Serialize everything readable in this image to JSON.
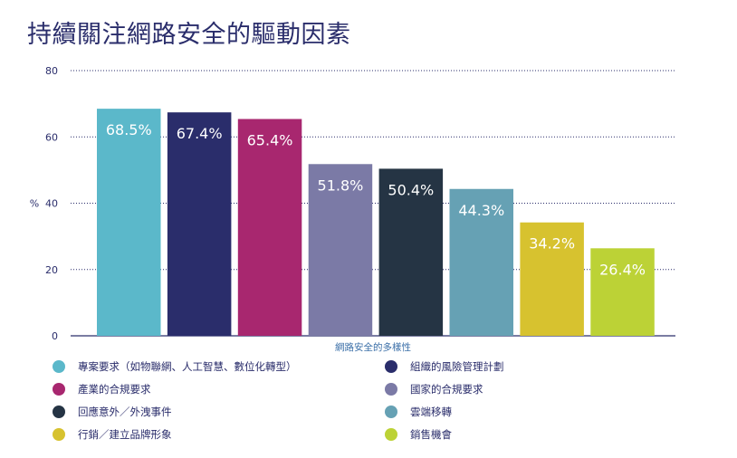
{
  "title": "持續關注網路安全的驅動因素",
  "chart_data": {
    "type": "bar",
    "categories": [
      "專案要求（如物聯網、人工智慧、數位化轉型）",
      "組織的風險管理計劃",
      "產業的合規要求",
      "國家的合規要求",
      "回應意外／外洩事件",
      "雲端移轉",
      "行銷／建立品牌形象",
      "銷售機會"
    ],
    "values": [
      68.5,
      67.4,
      65.4,
      51.8,
      50.4,
      44.3,
      34.2,
      26.4
    ],
    "value_labels": [
      "68.5%",
      "67.4%",
      "65.4%",
      "51.8%",
      "50.4%",
      "44.3%",
      "34.2%",
      "26.4%"
    ],
    "colors": [
      "#5bb8ca",
      "#2a2d6b",
      "#a8276f",
      "#7b7aa6",
      "#253444",
      "#66a1b4",
      "#d7c22f",
      "#bcd236"
    ],
    "ylabel": "%",
    "xlabel": "網路安全的多樣性",
    "ylim": [
      0,
      80
    ],
    "yticks": [
      0,
      20,
      40,
      60,
      80
    ],
    "grid": true,
    "legend_placement": "bottom"
  }
}
